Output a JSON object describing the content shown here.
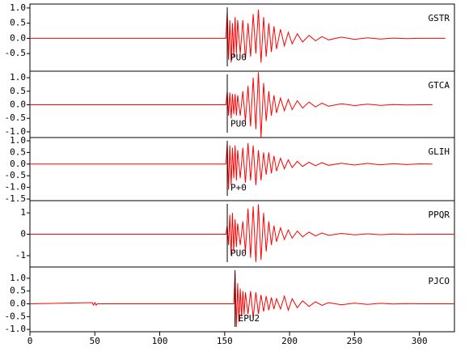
{
  "chart_data": [
    {
      "type": "line",
      "title": "GSTR",
      "pick": {
        "x": 152,
        "label": "PU0"
      },
      "xlim": [
        0,
        327
      ],
      "ylim": [
        -1.08,
        1.13
      ],
      "yticks": [
        {
          "value": 1,
          "label": "1.0"
        },
        0.5,
        {
          "value": 0,
          "label": "0.0"
        },
        -0.5
      ],
      "x": [
        0,
        151,
        152,
        153,
        154,
        155,
        156,
        157,
        158,
        159,
        160,
        162,
        164,
        166,
        168,
        170,
        172,
        174,
        176,
        178,
        180,
        182,
        184,
        186,
        188,
        190,
        193,
        196,
        199,
        202,
        206,
        210,
        215,
        220,
        225,
        230,
        240,
        250,
        260,
        270,
        280,
        290,
        300,
        320
      ],
      "series": [
        {
          "color": "#ff0000",
          "values": [
            0,
            0,
            0.9,
            -0.7,
            0.6,
            -0.8,
            0.5,
            -0.6,
            0.7,
            -0.5,
            0.6,
            -0.5,
            0.6,
            -0.7,
            0.5,
            -0.6,
            0.8,
            -0.5,
            0.95,
            -0.8,
            0.7,
            -0.6,
            0.5,
            -0.45,
            0.4,
            -0.35,
            0.3,
            -0.25,
            0.2,
            -0.18,
            0.15,
            -0.12,
            0.1,
            -0.08,
            0.06,
            -0.05,
            0.04,
            -0.03,
            0.02,
            -0.02,
            0.01,
            -0.01,
            0,
            0
          ]
        }
      ]
    },
    {
      "type": "line",
      "title": "GTCA",
      "pick": {
        "x": 152,
        "label": "PU0"
      },
      "xlim": [
        0,
        327
      ],
      "ylim": [
        -1.21,
        1.24
      ],
      "yticks": [
        {
          "value": 1,
          "label": "1.0"
        },
        0.5,
        {
          "value": 0,
          "label": "0.0"
        },
        -0.5,
        {
          "value": -1,
          "label": "-1.0"
        }
      ],
      "x": [
        0,
        151,
        152,
        153,
        154,
        155,
        156,
        157,
        158,
        159,
        160,
        162,
        164,
        166,
        168,
        170,
        172,
        174,
        176,
        178,
        180,
        182,
        184,
        186,
        188,
        190,
        193,
        196,
        199,
        202,
        206,
        210,
        215,
        220,
        225,
        230,
        240,
        250,
        260,
        270,
        280,
        290,
        300,
        310
      ],
      "series": [
        {
          "color": "#ff0000",
          "values": [
            0,
            0,
            0.5,
            -0.4,
            0.45,
            -0.5,
            0.4,
            -0.35,
            0.4,
            -0.4,
            0.35,
            -0.4,
            0.5,
            -0.6,
            0.7,
            -0.8,
            1.0,
            -0.9,
            1.2,
            -1.2,
            0.8,
            -0.6,
            0.5,
            -0.4,
            0.35,
            -0.3,
            0.25,
            -0.22,
            0.2,
            -0.18,
            0.15,
            -0.12,
            0.1,
            -0.08,
            0.06,
            -0.05,
            0.04,
            -0.03,
            0.02,
            -0.02,
            0.01,
            -0.01,
            0,
            0
          ]
        }
      ]
    },
    {
      "type": "line",
      "title": "GLIH",
      "pick": {
        "x": 152,
        "label": "P+0"
      },
      "xlim": [
        0,
        327
      ],
      "ylim": [
        -1.57,
        1.14
      ],
      "yticks": [
        {
          "value": 1,
          "label": "1.0"
        },
        0.5,
        {
          "value": 0,
          "label": "0.0"
        },
        -0.5,
        {
          "value": -1,
          "label": "-1.0"
        },
        -1.5
      ],
      "x": [
        0,
        151,
        152,
        153,
        154,
        155,
        156,
        157,
        158,
        159,
        160,
        162,
        164,
        166,
        168,
        170,
        172,
        174,
        176,
        178,
        180,
        182,
        184,
        186,
        188,
        190,
        193,
        196,
        199,
        202,
        206,
        210,
        215,
        220,
        225,
        230,
        240,
        250,
        260,
        270,
        280,
        290,
        300,
        310
      ],
      "series": [
        {
          "color": "#ff0000",
          "values": [
            0,
            0,
            0.9,
            -1.1,
            0.8,
            -0.9,
            0.7,
            -0.6,
            0.8,
            -0.7,
            0.6,
            -0.6,
            0.7,
            -0.8,
            0.9,
            -0.7,
            0.8,
            -0.9,
            0.6,
            -0.7,
            0.5,
            -0.45,
            0.5,
            -0.4,
            0.35,
            -0.3,
            0.25,
            -0.2,
            0.18,
            -0.15,
            0.12,
            -0.1,
            0.08,
            -0.07,
            0.06,
            -0.05,
            0.04,
            -0.04,
            0.03,
            -0.03,
            0.02,
            -0.02,
            0.01,
            0
          ]
        }
      ]
    },
    {
      "type": "line",
      "title": "PPQR",
      "pick": {
        "x": 152,
        "label": "PU0"
      },
      "xlim": [
        0,
        327
      ],
      "ylim": [
        -1.53,
        1.57
      ],
      "yticks": [
        1,
        0,
        -1
      ],
      "x": [
        0,
        151,
        152,
        153,
        154,
        155,
        156,
        157,
        158,
        159,
        160,
        162,
        164,
        166,
        168,
        170,
        172,
        174,
        176,
        178,
        180,
        182,
        184,
        186,
        188,
        190,
        193,
        196,
        199,
        202,
        206,
        210,
        215,
        220,
        225,
        230,
        240,
        250,
        260,
        270,
        280,
        290,
        300,
        327
      ],
      "series": [
        {
          "color": "#ff0000",
          "values": [
            0,
            0,
            0.4,
            -0.5,
            0.9,
            -1.0,
            1.0,
            -0.8,
            0.7,
            -0.6,
            0.5,
            -0.5,
            0.6,
            -0.8,
            1.2,
            -1.1,
            1.3,
            -1.3,
            1.4,
            -1.2,
            1.0,
            -0.8,
            0.6,
            -0.5,
            0.4,
            -0.35,
            0.3,
            -0.25,
            0.2,
            -0.18,
            0.15,
            -0.12,
            0.1,
            -0.08,
            0.06,
            -0.05,
            0.04,
            -0.03,
            0.02,
            -0.02,
            0.01,
            -0.01,
            0,
            0
          ]
        }
      ]
    },
    {
      "type": "line",
      "title": "PJCO",
      "pick": {
        "x": 158,
        "label": "EPU2"
      },
      "xlim": [
        0,
        327
      ],
      "ylim": [
        -1.09,
        1.44
      ],
      "yticks": [
        {
          "value": 1,
          "label": "1.0"
        },
        0.5,
        {
          "value": 0,
          "label": "0.0"
        },
        -0.5,
        {
          "value": -1,
          "label": "-1.0"
        }
      ],
      "xticks": [
        0,
        50,
        100,
        150,
        200,
        250,
        300
      ],
      "x": [
        0,
        48,
        49,
        50,
        51,
        52,
        157,
        158,
        159,
        160,
        161,
        162,
        163,
        164,
        165,
        166,
        168,
        170,
        172,
        174,
        176,
        178,
        180,
        182,
        184,
        186,
        188,
        190,
        193,
        196,
        199,
        202,
        206,
        210,
        215,
        220,
        225,
        230,
        240,
        250,
        260,
        270,
        280,
        290,
        300,
        327
      ],
      "series": [
        {
          "color": "#ff0000",
          "values": [
            0,
            0.05,
            -0.05,
            0.05,
            -0.05,
            0,
            0,
            1.2,
            -0.9,
            0.8,
            -0.7,
            0.6,
            -0.5,
            0.5,
            -0.4,
            0.45,
            -0.4,
            0.5,
            -0.55,
            0.45,
            -0.4,
            0.35,
            -0.3,
            0.3,
            -0.25,
            0.25,
            -0.2,
            0.2,
            -0.2,
            0.3,
            -0.25,
            0.2,
            -0.15,
            0.12,
            -0.1,
            0.08,
            -0.06,
            0.05,
            -0.04,
            0.03,
            -0.02,
            0.02,
            -0.01,
            0.01,
            0,
            0
          ]
        }
      ]
    }
  ]
}
